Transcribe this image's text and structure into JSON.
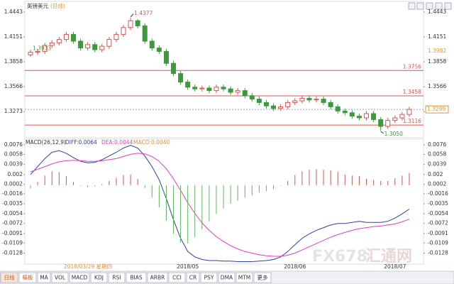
{
  "chart_data": [
    {
      "type": "candlestick",
      "title": "英镑美元",
      "period": "(日线)",
      "ylim": [
        1.3,
        1.45
      ],
      "yticks": [
        1.4443,
        1.4151,
        1.3858,
        1.3566,
        1.3273
      ],
      "open": [
        1.394,
        1.397,
        1.398,
        1.405,
        1.408,
        1.412,
        1.418,
        1.41,
        1.402,
        1.406,
        1.4,
        1.404,
        1.412,
        1.418,
        1.426,
        1.434,
        1.428,
        1.41,
        1.402,
        1.398,
        1.384,
        1.372,
        1.362,
        1.356,
        1.354,
        1.355,
        1.352,
        1.356,
        1.354,
        1.35,
        1.352,
        1.346,
        1.342,
        1.338,
        1.334,
        1.331,
        1.333,
        1.338,
        1.34,
        1.343,
        1.341,
        1.342,
        1.338,
        1.333,
        1.328,
        1.326,
        1.322,
        1.32,
        1.325,
        1.318,
        1.31,
        1.317,
        1.32,
        1.324
      ],
      "high": [
        1.4,
        1.401,
        1.408,
        1.411,
        1.415,
        1.421,
        1.421,
        1.413,
        1.409,
        1.409,
        1.407,
        1.415,
        1.421,
        1.429,
        1.4377,
        1.436,
        1.431,
        1.413,
        1.405,
        1.401,
        1.387,
        1.375,
        1.365,
        1.359,
        1.358,
        1.358,
        1.359,
        1.359,
        1.357,
        1.355,
        1.355,
        1.349,
        1.345,
        1.341,
        1.337,
        1.336,
        1.341,
        1.343,
        1.346,
        1.346,
        1.345,
        1.345,
        1.341,
        1.336,
        1.331,
        1.329,
        1.325,
        1.328,
        1.328,
        1.321,
        1.32,
        1.323,
        1.327,
        1.333
      ],
      "low": [
        1.3913,
        1.394,
        1.395,
        1.402,
        1.405,
        1.409,
        1.407,
        1.399,
        1.399,
        1.397,
        1.397,
        1.401,
        1.409,
        1.415,
        1.423,
        1.425,
        1.407,
        1.399,
        1.395,
        1.381,
        1.369,
        1.359,
        1.353,
        1.351,
        1.351,
        1.349,
        1.349,
        1.351,
        1.347,
        1.347,
        1.343,
        1.339,
        1.335,
        1.331,
        1.328,
        1.328,
        1.33,
        1.335,
        1.337,
        1.338,
        1.338,
        1.335,
        1.33,
        1.325,
        1.323,
        1.319,
        1.317,
        1.317,
        1.315,
        1.305,
        1.307,
        1.314,
        1.317,
        1.321
      ],
      "close": [
        1.397,
        1.398,
        1.405,
        1.408,
        1.412,
        1.418,
        1.41,
        1.402,
        1.406,
        1.4,
        1.404,
        1.412,
        1.418,
        1.426,
        1.434,
        1.428,
        1.41,
        1.402,
        1.398,
        1.384,
        1.372,
        1.362,
        1.356,
        1.354,
        1.355,
        1.352,
        1.356,
        1.354,
        1.35,
        1.352,
        1.346,
        1.342,
        1.338,
        1.334,
        1.331,
        1.333,
        1.338,
        1.34,
        1.343,
        1.341,
        1.342,
        1.338,
        1.333,
        1.328,
        1.326,
        1.322,
        1.32,
        1.325,
        1.318,
        1.31,
        1.317,
        1.32,
        1.324,
        1.3299
      ],
      "up_color": "#d9534f",
      "down_color": "#3c9a3c",
      "reference_lines": [
        1.3756,
        1.3458,
        1.3116
      ],
      "reference_color": "#d9534f",
      "last_price": 1.3299,
      "marker_label": 1.3982,
      "extreme_labels": {
        "first_low": "1.3913",
        "high": "1.4377",
        "low": "1.3050"
      }
    },
    {
      "type": "macd",
      "indicator": "MACD(26,12,9)",
      "diff_label": "DIFF:0.0064",
      "dea_label": "DEA:0.0044",
      "macd_label": "MACD:0.0040",
      "ylim": [
        -0.0146,
        0.0084
      ],
      "yticks": [
        0.0076,
        0.0058,
        0.0039,
        0.002,
        0.0002,
        -0.0016,
        -0.0035,
        -0.0054,
        -0.0072,
        -0.0091,
        -0.0109,
        -0.0128
      ],
      "categories": [
        null,
        null,
        null,
        null,
        null,
        null,
        null,
        null,
        null,
        null,
        null,
        null,
        null,
        null,
        null,
        null,
        null,
        null,
        null,
        null,
        null,
        null,
        "2018/05",
        null,
        null,
        null,
        null,
        null,
        null,
        null,
        null,
        null,
        null,
        null,
        null,
        null,
        null,
        "2018/06",
        null,
        null,
        null,
        null,
        null,
        null,
        null,
        null,
        null,
        null,
        null,
        null,
        null,
        "2018/07",
        null,
        null
      ],
      "cursor_label": "2018/03/29 星期四",
      "series": [
        {
          "color": "#2f3f9e",
          "values": [
            0.002,
            0.0035,
            0.005,
            0.0062,
            0.0065,
            0.006,
            0.0052,
            0.0045,
            0.0042,
            0.0043,
            0.0048,
            0.0055,
            0.0062,
            0.007,
            0.0075,
            0.007,
            0.0055,
            0.0035,
            0.001,
            -0.0025,
            -0.0065,
            -0.01,
            -0.0125,
            -0.0135,
            -0.014,
            -0.0142,
            -0.0142,
            -0.0143,
            -0.0143,
            -0.0144,
            -0.0144,
            -0.0144,
            -0.0143,
            -0.0142,
            -0.014,
            -0.0135,
            -0.0125,
            -0.0112,
            -0.01,
            -0.0092,
            -0.0085,
            -0.008,
            -0.0075,
            -0.0072,
            -0.0072,
            -0.007,
            -0.0068,
            -0.007,
            -0.007,
            -0.007,
            -0.0068,
            -0.0062,
            -0.0054,
            -0.0045
          ]
        },
        {
          "color": "#e03cc8",
          "values": [
            0.0025,
            0.003,
            0.0035,
            0.004,
            0.0044,
            0.0046,
            0.0047,
            0.0046,
            0.0045,
            0.0045,
            0.0046,
            0.0048,
            0.005,
            0.0054,
            0.0058,
            0.006,
            0.0059,
            0.0054,
            0.0045,
            0.0031,
            0.0012,
            -0.001,
            -0.0033,
            -0.0053,
            -0.0071,
            -0.0085,
            -0.0097,
            -0.0106,
            -0.0114,
            -0.012,
            -0.0125,
            -0.0128,
            -0.0131,
            -0.0133,
            -0.0134,
            -0.0134,
            -0.0132,
            -0.0128,
            -0.0122,
            -0.0116,
            -0.011,
            -0.0104,
            -0.0098,
            -0.0093,
            -0.0089,
            -0.0085,
            -0.0082,
            -0.008,
            -0.0078,
            -0.0077,
            -0.0075,
            -0.0073,
            -0.0069,
            -0.0064
          ]
        },
        {
          "type": "bar",
          "color": "#d9534f",
          "negative_color": "#5cb85c",
          "values": [
            -0.0006,
            0.0006,
            0.0018,
            0.0026,
            0.0025,
            0.0017,
            0.0006,
            -0.0001,
            -0.0004,
            -0.0002,
            0.0002,
            0.0008,
            0.0014,
            0.0019,
            0.002,
            0.0012,
            -0.0005,
            -0.0023,
            -0.0042,
            -0.0067,
            -0.0092,
            -0.0108,
            -0.011,
            -0.0098,
            -0.0083,
            -0.0068,
            -0.0054,
            -0.0044,
            -0.0035,
            -0.0029,
            -0.0023,
            -0.0019,
            -0.0014,
            -0.0011,
            -0.0007,
            -0.0001,
            0.0008,
            0.0019,
            0.0026,
            0.0029,
            0.003,
            0.0029,
            0.0028,
            0.0025,
            0.002,
            0.0018,
            0.0017,
            0.0012,
            0.001,
            0.0008,
            0.0008,
            0.0013,
            0.0018,
            0.0023
          ]
        }
      ]
    }
  ],
  "watermark": [
    "FX678",
    "汇通网"
  ],
  "toolbar": [
    "日线",
    "模板",
    "MA",
    "VOL",
    "MACD",
    "KDJ",
    "RSI",
    "BIAS",
    "ARBR",
    "CCI",
    "CR",
    "PSY",
    "DMA",
    "MTM",
    "更多"
  ]
}
